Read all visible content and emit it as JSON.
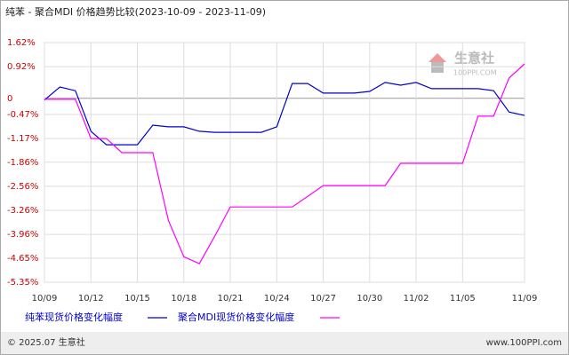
{
  "chart_data": {
    "type": "line",
    "title": "纯苯 - 聚合MDI 价格趋势比较(2023-10-09 - 2023-11-09)",
    "categories": [
      "10/09",
      null,
      null,
      "10/12",
      null,
      null,
      "10/15",
      null,
      null,
      "10/18",
      null,
      null,
      "10/21",
      null,
      null,
      "10/24",
      null,
      null,
      "10/27",
      null,
      null,
      "10/30",
      null,
      null,
      "11/02",
      null,
      null,
      "11/05",
      null,
      null,
      null,
      "11/09"
    ],
    "series": [
      {
        "name": "纯苯现货价格变化幅度",
        "color": "#0000cc",
        "values": [
          -0.05,
          0.33,
          0.22,
          -0.96,
          -1.35,
          -1.35,
          -1.35,
          -0.78,
          -0.83,
          -0.83,
          -0.96,
          -0.99,
          -0.99,
          -0.99,
          -0.99,
          -0.83,
          0.43,
          0.43,
          0.15,
          0.15,
          0.15,
          0.2,
          0.46,
          0.38,
          0.46,
          0.28,
          0.28,
          0.28,
          0.28,
          0.22,
          -0.4,
          -0.5
        ]
      },
      {
        "name": "聚合MDI现货价格变化幅度",
        "color": "#ff00ff",
        "values": [
          -0.03,
          -0.03,
          -0.03,
          -1.17,
          -1.17,
          -1.58,
          -1.58,
          -1.58,
          -3.55,
          -4.61,
          -4.81,
          -4.01,
          -3.16,
          -3.16,
          -3.16,
          -3.16,
          -3.16,
          -2.85,
          -2.54,
          -2.54,
          -2.54,
          -2.54,
          -2.54,
          -1.89,
          -1.89,
          -1.89,
          -1.89,
          -1.89,
          -0.52,
          -0.52,
          0.59,
          1.0
        ]
      }
    ],
    "ylim": [
      -5.35,
      1.62
    ],
    "yticks": [
      {
        "value": 1.62,
        "label": "1.62%"
      },
      {
        "value": 0.92,
        "label": "0.92%"
      },
      0,
      {
        "value": -0.47,
        "label": "-0.47%"
      },
      {
        "value": -1.17,
        "label": "-1.17%"
      },
      {
        "value": -1.86,
        "label": "-1.86%"
      },
      {
        "value": -2.56,
        "label": "-2.56%"
      },
      {
        "value": -3.26,
        "label": "-3.26%"
      },
      {
        "value": -3.96,
        "label": "-3.96%"
      },
      {
        "value": -4.65,
        "label": "-4.65%"
      },
      {
        "value": -5.35,
        "label": "-5.35%"
      }
    ],
    "grid": true,
    "watermark": {
      "name": "生意社",
      "site": "100PPI.COM"
    },
    "footer": {
      "copyright": "© 2025.07 生意社",
      "site": "www.100PPI.com"
    }
  }
}
